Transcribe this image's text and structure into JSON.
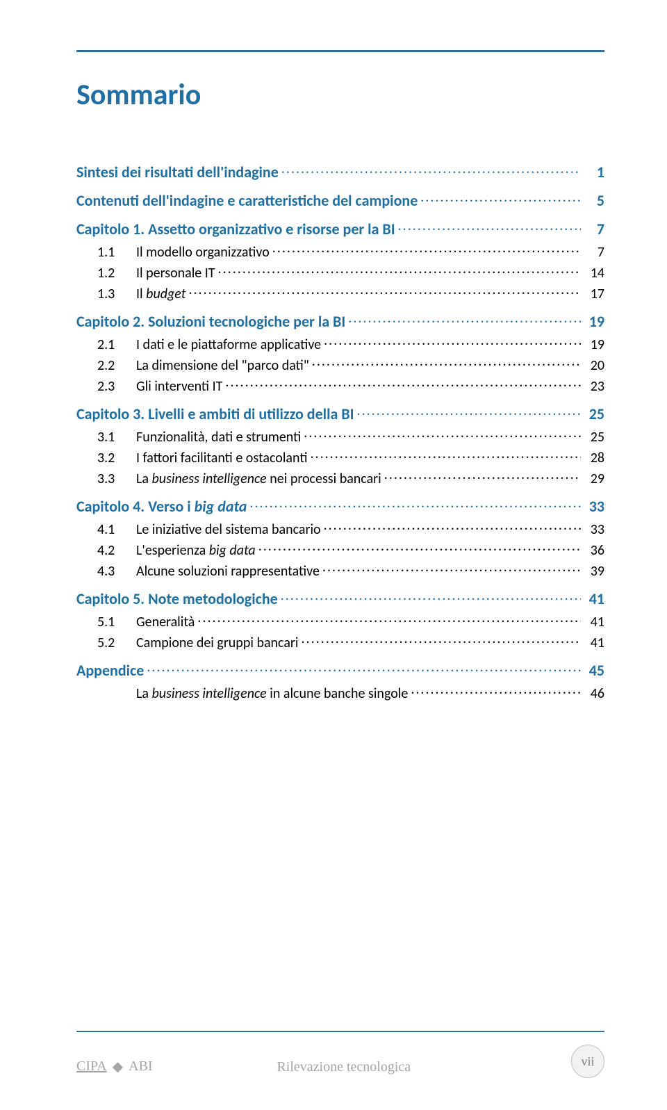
{
  "colors": {
    "accent": "#1f6fa3",
    "rule": "#2f6f9f",
    "text": "#000000",
    "footer_gray": "#a6a6a6",
    "badge_bg": "#f2f2f2",
    "badge_border": "#bfbfbf",
    "badge_text": "#7a7a7a",
    "background": "#ffffff"
  },
  "typography": {
    "title_fontsize": 42,
    "chapter_fontsize": 22,
    "section_fontsize": 20,
    "footer_fontsize": 20,
    "badge_fontsize": 18
  },
  "title": "Sommario",
  "toc": [
    {
      "level": "chapter",
      "label": "Sintesi dei risultati dell'indagine",
      "page": "1"
    },
    {
      "level": "chapter",
      "label": "Contenuti dell'indagine e caratteristiche del campione",
      "page": "5"
    },
    {
      "level": "chapter",
      "label": "Capitolo 1.   Assetto organizzativo e risorse per la BI",
      "page": "7"
    },
    {
      "level": "section",
      "num": "1.1",
      "label": "Il modello organizzativo",
      "page": "7"
    },
    {
      "level": "section",
      "num": "1.2",
      "label": "Il personale IT",
      "page": "14"
    },
    {
      "level": "section",
      "num": "1.3",
      "label_html": "Il <span class=\"italic\">budget</span>",
      "page": "17"
    },
    {
      "level": "chapter",
      "label": "Capitolo 2.   Soluzioni tecnologiche per la BI",
      "page": "19"
    },
    {
      "level": "section",
      "num": "2.1",
      "label": "I dati e le piattaforme applicative",
      "page": "19"
    },
    {
      "level": "section",
      "num": "2.2",
      "label": "La dimensione del \"parco dati\"",
      "page": "20"
    },
    {
      "level": "section",
      "num": "2.3",
      "label": "Gli interventi IT",
      "page": "23"
    },
    {
      "level": "chapter",
      "label": "Capitolo 3.   Livelli e ambiti di utilizzo della BI",
      "page": "25"
    },
    {
      "level": "section",
      "num": "3.1",
      "label": "Funzionalità, dati e strumenti",
      "page": "25"
    },
    {
      "level": "section",
      "num": "3.2",
      "label": "I fattori facilitanti e ostacolanti",
      "page": "28"
    },
    {
      "level": "section",
      "num": "3.3",
      "label_html": "La <span class=\"italic\">business intelligence</span> nei processi bancari",
      "page": "29"
    },
    {
      "level": "chapter",
      "label_html": "Capitolo 4.   Verso i <span class=\"italic\">big data</span>",
      "page": "33"
    },
    {
      "level": "section",
      "num": "4.1",
      "label": "Le iniziative del sistema bancario",
      "page": "33"
    },
    {
      "level": "section",
      "num": "4.2",
      "label_html": "L'esperienza  <span class=\"italic\">big data</span>",
      "page": "36"
    },
    {
      "level": "section",
      "num": "4.3",
      "label": "Alcune soluzioni rappresentative",
      "page": "39"
    },
    {
      "level": "chapter",
      "label": "Capitolo 5.   Note metodologiche",
      "page": "41"
    },
    {
      "level": "section",
      "num": "5.1",
      "label": "Generalità",
      "page": "41"
    },
    {
      "level": "section",
      "num": "5.2",
      "label": "Campione dei gruppi bancari",
      "page": "41"
    },
    {
      "level": "chapter",
      "label": "Appendice",
      "page": "45"
    },
    {
      "level": "section",
      "num": "",
      "label_html": "La <span class=\"italic\">business intelligence</span> in alcune banche singole",
      "page": "46"
    }
  ],
  "footer": {
    "left_a": "CIPA",
    "left_b": "ABI",
    "center": "Rilevazione tecnologica",
    "page_label": "vii"
  }
}
